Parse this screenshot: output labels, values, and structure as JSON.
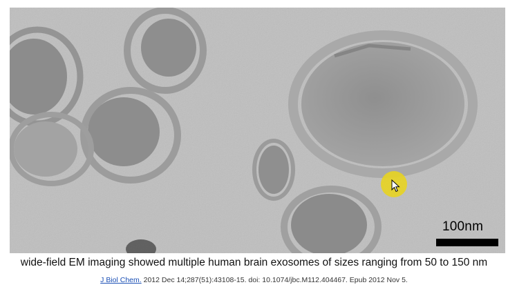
{
  "figure": {
    "scale_bar_label": "100nm",
    "caption": "wide-field EM imaging showed multiple human brain exosomes of sizes ranging from 50 to 150 nm"
  },
  "citation": {
    "journal_link": "J Biol Chem.",
    "details": "2012 Dec 14;287(51):43108-15.",
    "doi": "doi: 10.1074/jbc.M112.404467.",
    "epub": "Epub 2012 Nov 5."
  },
  "colors": {
    "background": "#ffffff",
    "em_field": "#bfbfbf",
    "pointer_highlight": "#e8d41e",
    "link": "#1a4fb5"
  }
}
